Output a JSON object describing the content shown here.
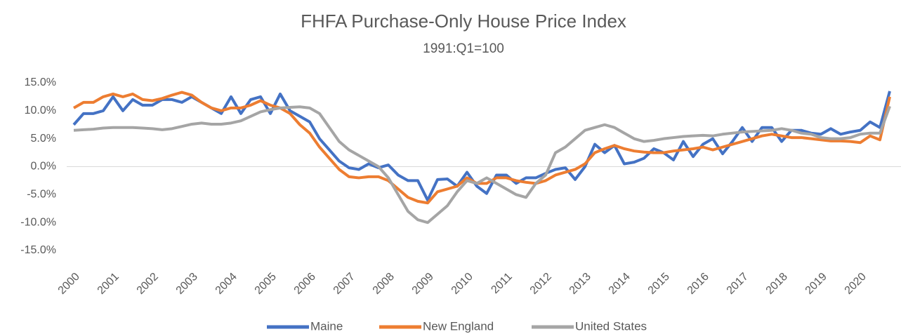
{
  "chart_data": {
    "type": "line",
    "title": "FHFA Purchase-Only House Price Index",
    "subtitle": "1991:Q1=100",
    "categories": [
      "2000",
      null,
      null,
      null,
      "2001",
      null,
      null,
      null,
      "2002",
      null,
      null,
      null,
      "2003",
      null,
      null,
      null,
      "2004",
      null,
      null,
      null,
      "2005",
      null,
      null,
      null,
      "2006",
      null,
      null,
      null,
      "2007",
      null,
      null,
      null,
      "2008",
      null,
      null,
      null,
      "2009",
      null,
      null,
      null,
      "2010",
      null,
      null,
      null,
      "2011",
      null,
      null,
      null,
      "2012",
      null,
      null,
      null,
      "2013",
      null,
      null,
      null,
      "2014",
      null,
      null,
      null,
      "2015",
      null,
      null,
      null,
      "2016",
      null,
      null,
      null,
      "2017",
      null,
      null,
      null,
      "2018",
      null,
      null,
      null,
      "2019",
      null,
      null,
      null,
      "2020",
      null,
      null,
      null
    ],
    "series": [
      {
        "name": "Maine",
        "color": "#4472c4",
        "values": [
          7.5,
          9.5,
          9.5,
          10,
          12.5,
          10,
          12,
          11,
          11,
          12,
          12,
          11.5,
          12.5,
          11.5,
          10.5,
          9.5,
          12.5,
          9.5,
          12,
          12.5,
          9.5,
          13,
          10,
          9,
          8,
          5,
          3,
          1,
          -0.2,
          -0.5,
          0.5,
          -0.2,
          0.3,
          -1.5,
          -2.5,
          -2.5,
          -6,
          -2.3,
          -2.2,
          -3.5,
          -1,
          -3.5,
          -4.8,
          -1.5,
          -1.5,
          -3,
          -2,
          -2,
          -1.2,
          -0.5,
          -0.2,
          -2.3,
          0,
          4,
          2.5,
          3.8,
          0.5,
          0.8,
          1.5,
          3.2,
          2.5,
          1.2,
          4.5,
          1.8,
          4,
          5,
          2.3,
          4.5,
          7,
          4.5,
          7,
          7,
          4.5,
          6.5,
          6.5,
          6,
          5.8,
          6.8,
          5.8,
          6.2,
          6.5,
          8,
          7,
          13.5
        ]
      },
      {
        "name": "New England",
        "color": "#ed7d31",
        "values": [
          10.5,
          11.5,
          11.5,
          12.5,
          13,
          12.5,
          13,
          12,
          11.8,
          12.2,
          12.8,
          13.3,
          12.8,
          11.5,
          10.5,
          10,
          10.5,
          10.5,
          11,
          11.8,
          11,
          10.5,
          9.5,
          7.5,
          6,
          3.5,
          1.5,
          -0.5,
          -1.8,
          -2,
          -1.8,
          -1.8,
          -2.5,
          -4,
          -5.5,
          -6.2,
          -6.5,
          -4.5,
          -4,
          -3.5,
          -2,
          -3,
          -3,
          -2,
          -2,
          -2.5,
          -2.8,
          -3,
          -2.5,
          -1.5,
          -1,
          -0.5,
          0.5,
          2.5,
          3.2,
          3.8,
          3.2,
          2.8,
          2.6,
          2.5,
          2.5,
          2.8,
          3,
          3.2,
          3.5,
          3,
          3.5,
          4,
          4.5,
          5,
          5.5,
          5.8,
          5.5,
          5.2,
          5.2,
          5,
          4.8,
          4.6,
          4.6,
          4.5,
          4.3,
          5.5,
          4.8,
          12.5
        ]
      },
      {
        "name": "United States",
        "color": "#a5a5a5",
        "values": [
          6.5,
          6.6,
          6.7,
          6.9,
          7,
          7,
          7,
          6.9,
          6.8,
          6.6,
          6.8,
          7.2,
          7.6,
          7.8,
          7.6,
          7.6,
          7.8,
          8.2,
          9,
          9.8,
          10.2,
          10.5,
          10.6,
          10.7,
          10.5,
          9.5,
          7,
          4.5,
          3,
          2,
          1,
          0,
          -2,
          -5,
          -8,
          -9.5,
          -10,
          -8.5,
          -7,
          -4.5,
          -2.5,
          -3,
          -2,
          -3,
          -4,
          -5,
          -5.5,
          -3,
          -1.5,
          2.5,
          3.5,
          5,
          6.5,
          7,
          7.5,
          7,
          6,
          5,
          4.5,
          4.7,
          5,
          5.2,
          5.4,
          5.5,
          5.6,
          5.5,
          5.8,
          6,
          6.2,
          6.3,
          6.4,
          6.5,
          6.8,
          6.5,
          6,
          5.8,
          5.2,
          5,
          5,
          5.2,
          5.8,
          6,
          6,
          10.8
        ]
      }
    ],
    "ylim": [
      -15,
      15
    ],
    "yticks": [
      {
        "value": -15,
        "label": "-15.0%"
      },
      {
        "value": -10,
        "label": "-10.0%"
      },
      {
        "value": -5,
        "label": "-5.0%"
      },
      {
        "value": 0,
        "label": "0.0%"
      },
      {
        "value": 5,
        "label": "5.0%"
      },
      {
        "value": 10,
        "label": "10.0%"
      },
      {
        "value": 15,
        "label": "15.0%"
      }
    ],
    "grid": false
  }
}
